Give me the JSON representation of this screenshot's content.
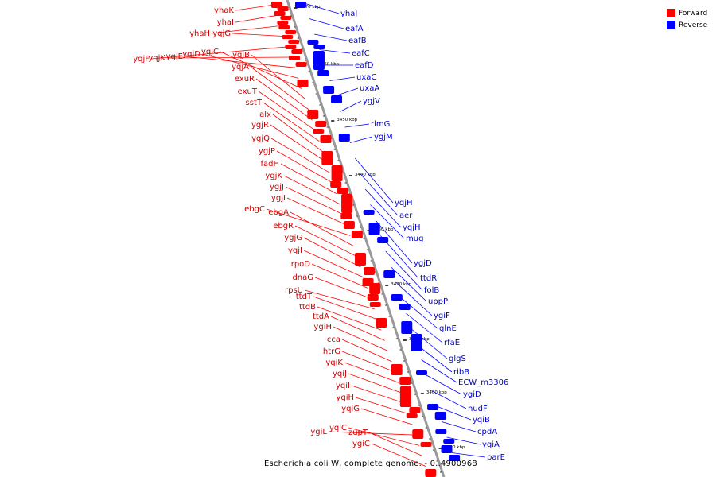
{
  "caption": "Escherichia coli W, complete genome. - 0..4900968",
  "legend": {
    "forward": {
      "label": "Forward",
      "color": "#ff0000"
    },
    "reverse": {
      "label": "Reverse",
      "color": "#0000ff"
    }
  },
  "colors": {
    "forward": "#ff0000",
    "reverse": "#0000ff",
    "backbone": "#999999",
    "label_forward": "#cc0000",
    "label_reverse": "#0000cc"
  },
  "scale_ticks": [
    "3470 kbp",
    "3460 kbp",
    "3450 kbp",
    "3440 kbp",
    "3430 kbp",
    "3420 kbp",
    "3410 kbp",
    "3400 kbp",
    "3390 kbp"
  ],
  "forward_genes": [
    "yhaK",
    "yhaI",
    "yhaH",
    "yqjG",
    "yqjF",
    "yqjK",
    "yqjE",
    "yqjD",
    "yqjC",
    "yqjB",
    "yqjA",
    "exuR",
    "exuT",
    "sstT",
    "alx",
    "ygjR",
    "ygjQ",
    "ygjP",
    "fadH",
    "ygjK",
    "ygjJ",
    "ygjI",
    "ebgC",
    "ebgA",
    "ebgR",
    "ygjG",
    "yqjI",
    "rpoD",
    "dnaG",
    "rpsU",
    "ttdT",
    "ttdB",
    "ttdA",
    "ygiH",
    "cca",
    "htrG",
    "yqiK",
    "yqiJ",
    "yqiI",
    "yqiH",
    "yqiG",
    "ygiL",
    "yqiC",
    "zupT",
    "ygiC"
  ],
  "reverse_genes": [
    "yhaJ",
    "eafA",
    "eafB",
    "eafC",
    "eafD",
    "uxaC",
    "uxaA",
    "ygjV",
    "rlmG",
    "ygjM",
    "yqjH",
    "aer",
    "yqjH",
    "mug",
    "ygjD",
    "ttdR",
    "folB",
    "uppP",
    "ygiF",
    "glnE",
    "rfaE",
    "glgS",
    "ribB",
    "ECW_m3306",
    "ygiD",
    "nudF",
    "yqiB",
    "cpdA",
    "yqiA",
    "parE"
  ]
}
